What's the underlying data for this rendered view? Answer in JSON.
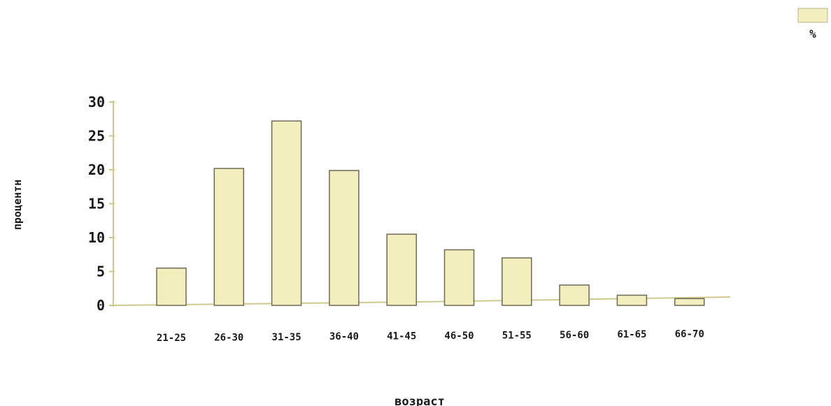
{
  "chart_data": {
    "type": "bar",
    "categories": [
      "21-25",
      "26-30",
      "31-35",
      "36-40",
      "41-45",
      "46-50",
      "51-55",
      "56-60",
      "61-65",
      "66-70"
    ],
    "series": [
      {
        "name": "%",
        "values": [
          5.5,
          20.2,
          27.2,
          19.9,
          10.5,
          8.2,
          7.0,
          3.0,
          1.5,
          1.0
        ]
      }
    ],
    "yticks": [
      "0",
      "5",
      "10",
      "15",
      "20",
      "25",
      "30"
    ],
    "ylim": [
      0,
      30
    ],
    "xlabel": "возраст",
    "ylabel": "процентн",
    "title": "",
    "legend": {
      "position": "top-right",
      "label": "%"
    },
    "colors": {
      "bar_fill": "#f3eebd",
      "bar_stroke": "#6e6a55",
      "axis": "#cfc98f",
      "text": "#1a1a1a"
    },
    "grid": false
  }
}
